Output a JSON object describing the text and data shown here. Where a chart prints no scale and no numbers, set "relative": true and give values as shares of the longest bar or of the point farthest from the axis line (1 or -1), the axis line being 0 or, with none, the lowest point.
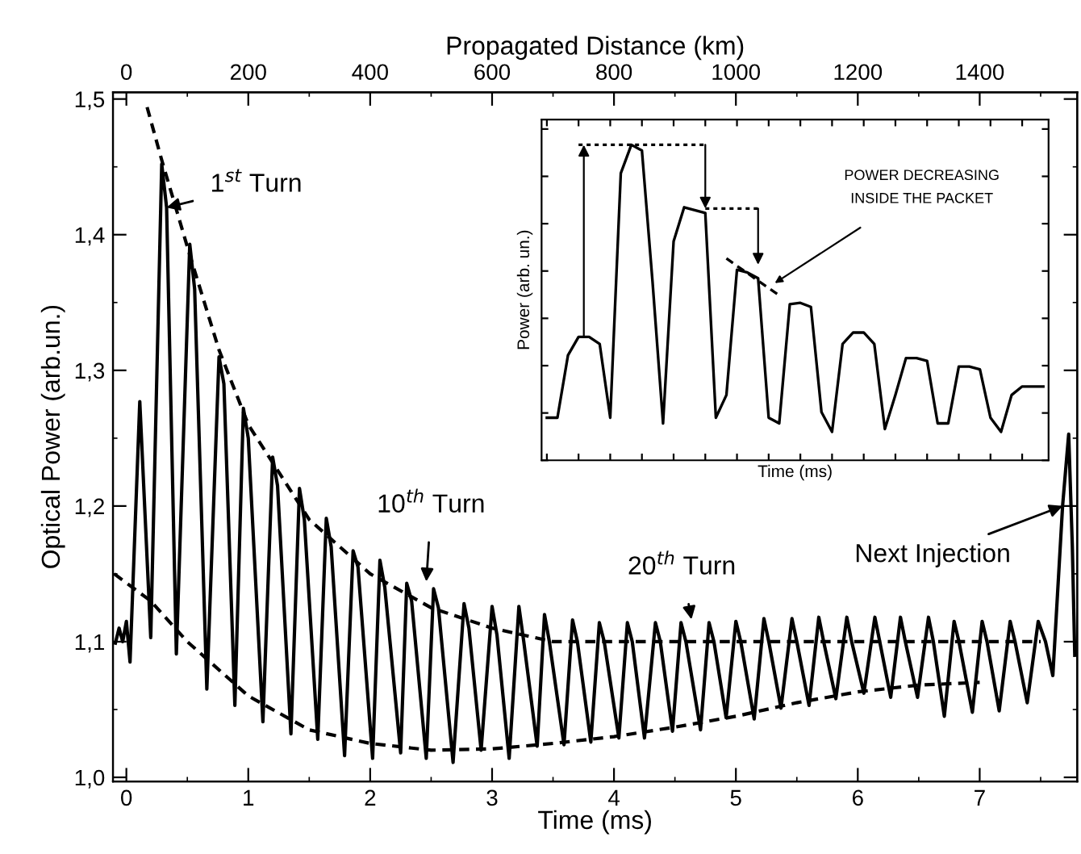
{
  "chart_data": [
    {
      "type": "line",
      "xlabel": "Time (ms)",
      "ylabel": "Optical Power (arb.un.)",
      "x2label": "Propagated Distance (km)",
      "xlim": [
        -0.11,
        7.8
      ],
      "xticks": [
        0,
        1,
        2,
        3,
        4,
        5,
        6,
        7
      ],
      "x2lim": [
        -22,
        1560
      ],
      "x2ticks": [
        0,
        200,
        400,
        600,
        800,
        1000,
        1200,
        1400
      ],
      "ylim": [
        0.997,
        1.505
      ],
      "yticks": [
        {
          "value": 1.0,
          "label": "1,0"
        },
        {
          "value": 1.1,
          "label": "1,1"
        },
        {
          "value": 1.2,
          "label": "1,2"
        },
        {
          "value": 1.3,
          "label": "1,3"
        },
        {
          "value": 1.4,
          "label": "1,4"
        },
        {
          "value": 1.5,
          "label": "1,5"
        }
      ],
      "grid": false,
      "series": [
        {
          "color": "#000000",
          "line_style": "solid",
          "x": [
            -0.09,
            -0.06,
            -0.03,
            0.0,
            0.03,
            0.11,
            0.2,
            0.29,
            0.33,
            0.41,
            0.52,
            0.56,
            0.66,
            0.76,
            0.8,
            0.89,
            0.96,
            1.0,
            1.12,
            1.2,
            1.24,
            1.35,
            1.42,
            1.46,
            1.57,
            1.64,
            1.68,
            1.79,
            1.86,
            1.9,
            2.02,
            2.08,
            2.12,
            2.25,
            2.3,
            2.34,
            2.46,
            2.52,
            2.56,
            2.68,
            2.77,
            2.81,
            2.91,
            3.0,
            3.04,
            3.14,
            3.22,
            3.26,
            3.37,
            3.43,
            3.47,
            3.59,
            3.66,
            3.7,
            3.81,
            3.88,
            3.92,
            4.04,
            4.11,
            4.15,
            4.25,
            4.34,
            4.38,
            4.48,
            4.55,
            4.59,
            4.71,
            4.78,
            4.82,
            4.92,
            5.0,
            5.04,
            5.15,
            5.23,
            5.27,
            5.37,
            5.46,
            5.5,
            5.6,
            5.68,
            5.72,
            5.82,
            5.91,
            5.95,
            6.05,
            6.14,
            6.18,
            6.27,
            6.35,
            6.39,
            6.49,
            6.58,
            6.62,
            6.71,
            6.79,
            6.83,
            6.94,
            7.02,
            7.06,
            7.16,
            7.25,
            7.29,
            7.39,
            7.48,
            7.54,
            7.6,
            7.68,
            7.73,
            7.76,
            7.78
          ],
          "values": [
            1.099,
            1.11,
            1.1,
            1.115,
            1.085,
            1.277,
            1.103,
            1.452,
            1.42,
            1.091,
            1.393,
            1.36,
            1.065,
            1.31,
            1.29,
            1.053,
            1.272,
            1.25,
            1.041,
            1.236,
            1.215,
            1.032,
            1.213,
            1.19,
            1.028,
            1.191,
            1.17,
            1.016,
            1.167,
            1.155,
            1.014,
            1.16,
            1.14,
            1.018,
            1.143,
            1.13,
            1.014,
            1.139,
            1.125,
            1.011,
            1.128,
            1.11,
            1.02,
            1.126,
            1.105,
            1.014,
            1.126,
            1.1,
            1.023,
            1.12,
            1.1,
            1.024,
            1.116,
            1.1,
            1.026,
            1.114,
            1.1,
            1.029,
            1.114,
            1.1,
            1.029,
            1.114,
            1.1,
            1.034,
            1.114,
            1.1,
            1.035,
            1.114,
            1.1,
            1.044,
            1.115,
            1.1,
            1.043,
            1.117,
            1.1,
            1.051,
            1.117,
            1.1,
            1.053,
            1.118,
            1.1,
            1.058,
            1.118,
            1.1,
            1.062,
            1.118,
            1.1,
            1.059,
            1.118,
            1.1,
            1.059,
            1.118,
            1.1,
            1.045,
            1.115,
            1.1,
            1.048,
            1.115,
            1.1,
            1.049,
            1.115,
            1.1,
            1.055,
            1.115,
            1.1,
            1.075,
            1.2,
            1.253,
            1.17,
            1.09
          ]
        },
        {
          "color": "#000000",
          "line_style": "dashed",
          "x": [
            0.17,
            0.29,
            0.52,
            0.76,
            1.0,
            1.5,
            2.0,
            2.5,
            3.0,
            3.5,
            4.0,
            5.0,
            6.0,
            7.0,
            7.5
          ],
          "values": [
            1.494,
            1.455,
            1.385,
            1.315,
            1.26,
            1.19,
            1.15,
            1.125,
            1.11,
            1.1,
            1.1,
            1.1,
            1.1,
            1.1,
            1.1
          ]
        },
        {
          "color": "#000000",
          "line_style": "dashed",
          "x": [
            -0.1,
            0.2,
            0.5,
            1.0,
            1.5,
            2.0,
            2.5,
            3.0,
            3.5,
            4.0,
            4.5,
            5.0,
            5.5,
            6.0,
            6.5,
            7.0
          ],
          "values": [
            1.15,
            1.13,
            1.1,
            1.06,
            1.035,
            1.025,
            1.02,
            1.021,
            1.025,
            1.03,
            1.037,
            1.045,
            1.055,
            1.063,
            1.068,
            1.07
          ]
        }
      ],
      "annotations": [
        {
          "text": "1$^{st}$ Turn",
          "x": 0.33,
          "y": 1.42
        },
        "10$^{th}$ Turn",
        "20$^{th}$ Turn",
        {
          "text": "Next Injection",
          "x": 7.68,
          "y": 1.2
        }
      ]
    },
    {
      "type": "line",
      "relative": true,
      "xlabel": "Time (ms)",
      "ylabel": "Power (arb. un.)",
      "tick_labels": false,
      "grid": false,
      "categories": [
        null,
        null,
        null,
        null,
        null,
        null,
        null,
        null,
        null,
        null,
        null,
        null,
        null,
        null,
        null,
        null,
        null,
        null,
        null,
        null,
        null,
        null,
        null,
        null,
        null,
        null,
        null,
        null,
        null,
        null,
        null,
        null,
        null,
        null,
        null,
        null,
        null,
        null,
        null,
        null,
        null,
        null,
        null,
        null,
        null,
        null,
        null,
        null
      ],
      "series": [
        {
          "color": "#000000",
          "line_style": "solid",
          "values": [
            0.135,
            0.135,
            0.333,
            0.391,
            0.391,
            0.369,
            0.135,
            0.91,
            1.0,
            0.982,
            0.568,
            0.117,
            0.694,
            0.802,
            0.793,
            0.784,
            0.135,
            0.207,
            0.604,
            0.595,
            0.577,
            0.135,
            0.117,
            0.495,
            0.499,
            0.486,
            0.153,
            0.09,
            0.369,
            0.405,
            0.405,
            0.369,
            0.099,
            0.207,
            0.324,
            0.324,
            0.315,
            0.117,
            0.117,
            0.297,
            0.297,
            0.288,
            0.135,
            0.09,
            0.207,
            0.234,
            0.234,
            0.234
          ]
        },
        {
          "color": "#000000",
          "line_style": "dotted",
          "values": [
            null,
            null,
            null,
            1.0,
            1.0,
            1.0,
            1.0,
            1.0,
            1.0,
            1.0,
            1.0,
            1.0,
            1.0,
            1.0,
            1.0,
            1.0,
            null,
            null,
            null,
            null,
            null,
            null,
            null,
            null,
            null,
            null,
            null,
            null,
            null,
            null,
            null,
            null,
            null,
            null,
            null,
            null,
            null,
            null,
            null,
            null,
            null,
            null,
            null,
            null,
            null,
            null,
            null,
            null
          ]
        },
        {
          "color": "#000000",
          "line_style": "dotted",
          "values": [
            null,
            null,
            null,
            null,
            null,
            null,
            null,
            null,
            null,
            null,
            null,
            null,
            null,
            null,
            null,
            0.798,
            0.798,
            0.798,
            0.798,
            0.798,
            0.798,
            null,
            null,
            null,
            null,
            null,
            null,
            null,
            null,
            null,
            null,
            null,
            null,
            null,
            null,
            null,
            null,
            null,
            null,
            null,
            null,
            null,
            null,
            null,
            null,
            null,
            null,
            null
          ]
        },
        {
          "color": "#000000",
          "line_style": "dashed",
          "values": [
            null,
            null,
            null,
            null,
            null,
            null,
            null,
            null,
            null,
            null,
            null,
            null,
            null,
            null,
            null,
            null,
            null,
            0.64,
            0.616,
            0.593,
            0.569,
            0.546,
            0.523,
            null,
            null,
            null,
            null,
            null,
            null,
            null,
            null,
            null,
            null,
            null,
            null,
            null,
            null,
            null,
            null,
            null,
            null,
            null,
            null,
            null,
            null,
            null,
            null,
            null
          ]
        }
      ],
      "annotations": [
        "POWER DECREASING\nINSIDE THE PACKET"
      ]
    }
  ]
}
